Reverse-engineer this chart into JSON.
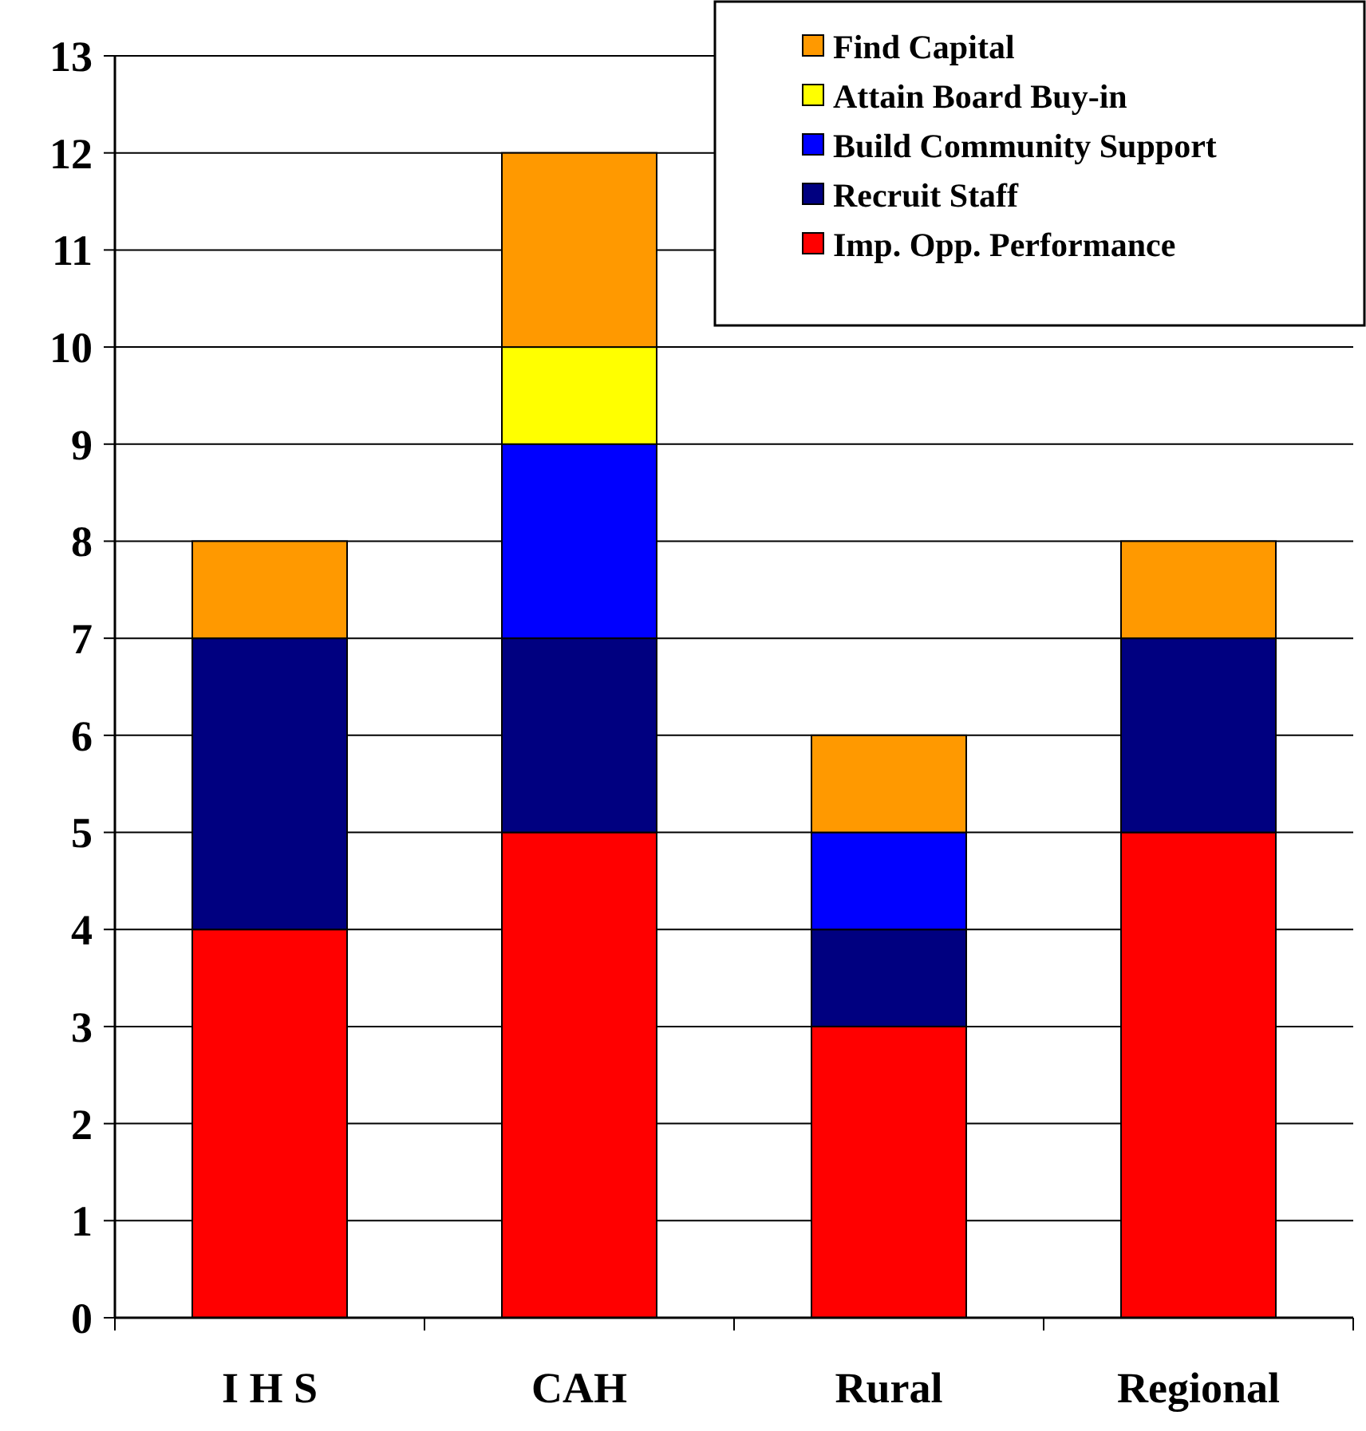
{
  "chart_data": {
    "type": "bar",
    "stacked": true,
    "categories": [
      "I H S",
      "CAH",
      "Rural",
      "Regional"
    ],
    "series": [
      {
        "name": "Imp. Opp. Performance",
        "color": "#ff0000",
        "values": [
          4,
          5,
          3,
          5
        ]
      },
      {
        "name": "Recruit Staff",
        "color": "#000080",
        "values": [
          3,
          2,
          1,
          2
        ]
      },
      {
        "name": "Build Community Support",
        "color": "#0000ff",
        "values": [
          0,
          2,
          1,
          0
        ]
      },
      {
        "name": "Attain Board Buy-in",
        "color": "#ffff00",
        "values": [
          0,
          1,
          0,
          0
        ]
      },
      {
        "name": "Find Capital",
        "color": "#ff9900",
        "values": [
          1,
          2,
          1,
          1
        ]
      }
    ],
    "ylim": [
      0,
      13
    ],
    "yticks": [
      0,
      1,
      2,
      3,
      4,
      5,
      6,
      7,
      8,
      9,
      10,
      11,
      12,
      13
    ],
    "grid": "y",
    "legend": "top right"
  }
}
